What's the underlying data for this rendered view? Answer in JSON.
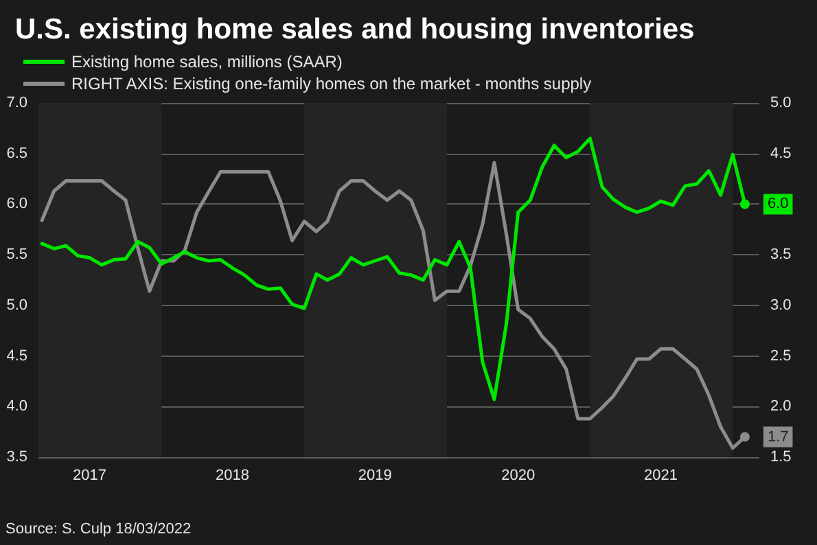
{
  "chart_data": {
    "type": "line",
    "title": "U.S. existing home sales and housing inventories",
    "annotations": [
      "Source: S. Culp 18/03/2022"
    ],
    "x": [
      "2017-03",
      "2017-04",
      "2017-05",
      "2017-06",
      "2017-07",
      "2017-08",
      "2017-09",
      "2017-10",
      "2017-11",
      "2017-12",
      "2018-01",
      "2018-02",
      "2018-03",
      "2018-04",
      "2018-05",
      "2018-06",
      "2018-07",
      "2018-08",
      "2018-09",
      "2018-10",
      "2018-11",
      "2018-12",
      "2019-01",
      "2019-02",
      "2019-03",
      "2019-04",
      "2019-05",
      "2019-06",
      "2019-07",
      "2019-08",
      "2019-09",
      "2019-10",
      "2019-11",
      "2019-12",
      "2020-01",
      "2020-02",
      "2020-03",
      "2020-04",
      "2020-05",
      "2020-06",
      "2020-07",
      "2020-08",
      "2020-09",
      "2020-10",
      "2020-11",
      "2020-12",
      "2021-01",
      "2021-02",
      "2021-03",
      "2021-04",
      "2021-05",
      "2021-06",
      "2021-07",
      "2021-08",
      "2021-09",
      "2021-10",
      "2021-11",
      "2021-12",
      "2022-01",
      "2022-02"
    ],
    "series": [
      {
        "name": "Existing home sales, millions (SAAR)",
        "color": "#00e600",
        "values": [
          5.61,
          5.56,
          5.59,
          5.49,
          5.47,
          5.4,
          5.45,
          5.46,
          5.63,
          5.57,
          5.41,
          5.47,
          5.53,
          5.47,
          5.44,
          5.45,
          5.37,
          5.3,
          5.2,
          5.16,
          5.17,
          5.01,
          4.97,
          5.31,
          5.25,
          5.31,
          5.47,
          5.4,
          5.44,
          5.48,
          5.32,
          5.3,
          5.25,
          5.45,
          5.4,
          5.63,
          5.37,
          4.44,
          4.07,
          4.82,
          5.92,
          6.04,
          6.37,
          6.58,
          6.46,
          6.52,
          6.65,
          6.17,
          6.05,
          5.97,
          5.92,
          5.96,
          6.03,
          5.99,
          6.18,
          6.2,
          6.33,
          6.09,
          6.49,
          6.0
        ],
        "value_labels": [
          null,
          null,
          null,
          null,
          null,
          null,
          null,
          null,
          null,
          null,
          null,
          null,
          null,
          null,
          null,
          null,
          null,
          null,
          null,
          null,
          null,
          null,
          null,
          null,
          null,
          null,
          null,
          null,
          null,
          null,
          null,
          null,
          null,
          null,
          null,
          null,
          null,
          null,
          null,
          null,
          null,
          null,
          null,
          null,
          null,
          null,
          null,
          null,
          null,
          null,
          null,
          null,
          null,
          null,
          null,
          null,
          null,
          null,
          null,
          "6.0"
        ]
      },
      {
        "name": "RIGHT AXIS: Existing one-family homes on the market - months supply",
        "color": "#8c8c8c",
        "axis": "y2",
        "values": [
          3.84,
          4.13,
          4.23,
          4.23,
          4.23,
          4.23,
          4.13,
          4.04,
          3.57,
          3.14,
          3.44,
          3.44,
          3.54,
          3.92,
          4.12,
          4.32,
          4.32,
          4.32,
          4.32,
          4.32,
          4.03,
          3.64,
          3.83,
          3.73,
          3.83,
          4.13,
          4.23,
          4.23,
          4.13,
          4.04,
          4.13,
          4.04,
          3.74,
          3.05,
          3.14,
          3.14,
          3.39,
          3.8,
          4.41,
          3.7,
          2.96,
          2.87,
          2.69,
          2.57,
          2.37,
          1.88,
          1.88,
          1.99,
          2.1,
          2.28,
          2.47,
          2.47,
          2.57,
          2.57,
          2.47,
          2.37,
          2.11,
          1.8,
          1.59,
          1.7
        ],
        "value_labels": [
          null,
          null,
          null,
          null,
          null,
          null,
          null,
          null,
          null,
          null,
          null,
          null,
          null,
          null,
          null,
          null,
          null,
          null,
          null,
          null,
          null,
          null,
          null,
          null,
          null,
          null,
          null,
          null,
          null,
          null,
          null,
          null,
          null,
          null,
          null,
          null,
          null,
          null,
          null,
          null,
          null,
          null,
          null,
          null,
          null,
          null,
          null,
          null,
          null,
          null,
          null,
          null,
          null,
          null,
          null,
          null,
          null,
          null,
          null,
          "1.7"
        ]
      }
    ],
    "xlim": [
      "2017-02-20",
      "2022-03-10"
    ],
    "xticks": [
      {
        "value": "2017-07-01",
        "label": "2017"
      },
      {
        "value": "2018-07-01",
        "label": "2018"
      },
      {
        "value": "2019-07-01",
        "label": "2019"
      },
      {
        "value": "2020-07-01",
        "label": "2020"
      },
      {
        "value": "2021-07-01",
        "label": "2021"
      }
    ],
    "ylim": [
      3.5,
      7.0
    ],
    "yticks": [
      {
        "value": 3.5,
        "label": "3.5"
      },
      {
        "value": 4.0,
        "label": "4.0"
      },
      {
        "value": 4.5,
        "label": "4.5"
      },
      {
        "value": 5.0,
        "label": "5.0"
      },
      {
        "value": 5.5,
        "label": "5.5"
      },
      {
        "value": 6.0,
        "label": "6.0"
      },
      {
        "value": 6.5,
        "label": "6.5"
      },
      {
        "value": 7.0,
        "label": "7.0"
      }
    ],
    "y2lim": [
      1.5,
      5.0
    ],
    "y2ticks": [
      {
        "value": 1.5,
        "label": "1.5"
      },
      {
        "value": 2.0,
        "label": "2.0"
      },
      {
        "value": 2.5,
        "label": "2.5"
      },
      {
        "value": 3.0,
        "label": "3.0"
      },
      {
        "value": 3.5,
        "label": "3.5"
      },
      {
        "value": 4.0,
        "label": null
      },
      {
        "value": 4.5,
        "label": "4.5"
      },
      {
        "value": 5.0,
        "label": "5.0"
      }
    ],
    "bands": [
      {
        "axis": "x",
        "from": "2017-02-20",
        "to": "2018-01-01",
        "color": "#242424"
      },
      {
        "axis": "x",
        "from": "2019-01-01",
        "to": "2020-01-01",
        "color": "#242424"
      },
      {
        "axis": "x",
        "from": "2021-01-01",
        "to": "2022-01-01",
        "color": "#242424"
      }
    ],
    "grid": "y",
    "legend": "top left"
  }
}
